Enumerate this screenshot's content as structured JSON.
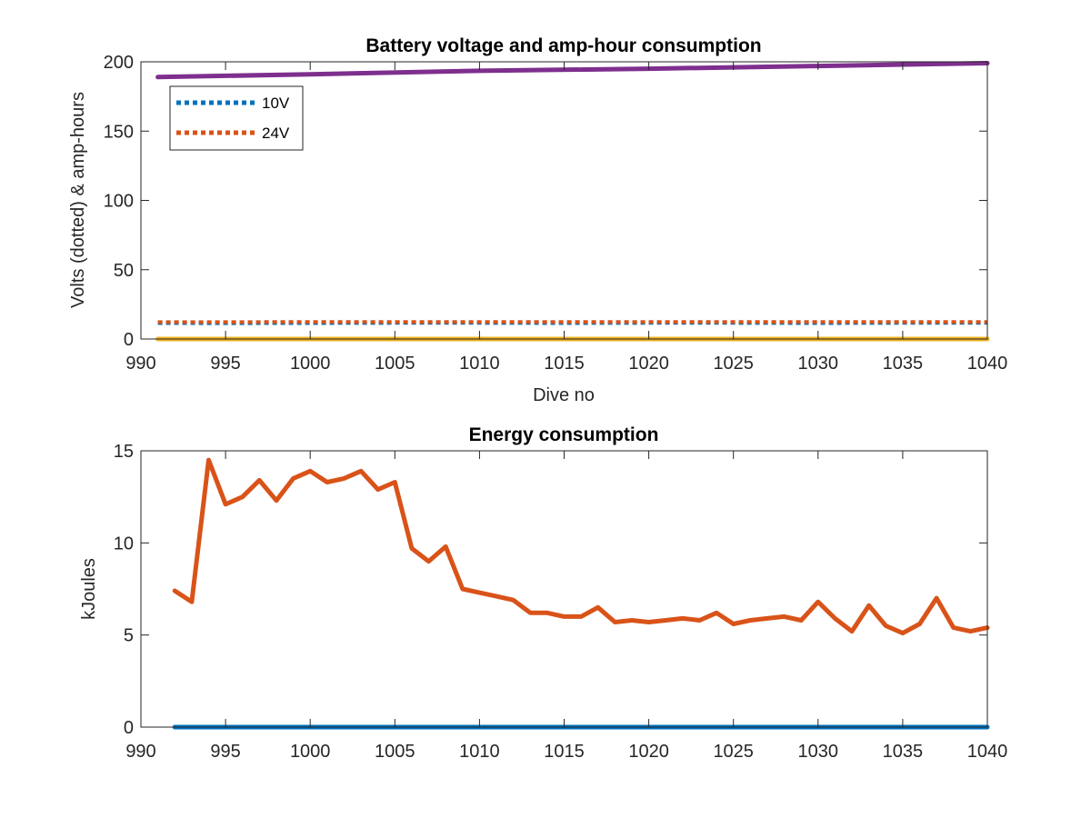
{
  "chart_data": [
    {
      "type": "line",
      "title": "Battery voltage and amp-hour consumption",
      "xlabel": "Dive no",
      "ylabel": "Volts (dotted) & amp-hours",
      "xlim": [
        990,
        1040
      ],
      "ylim": [
        0,
        200
      ],
      "xticks": [
        "990",
        "995",
        "1000",
        "1005",
        "1010",
        "1015",
        "1020",
        "1025",
        "1030",
        "1035",
        "1040"
      ],
      "yticks": [
        "0",
        "50",
        "100",
        "150",
        "200"
      ],
      "legend_position": "top-left",
      "series": [
        {
          "name": "10V",
          "style": "dotted",
          "color": "#0072BD",
          "x": [
            991,
            995,
            1000,
            1005,
            1010,
            1015,
            1020,
            1025,
            1030,
            1035,
            1040
          ],
          "y": [
            11.5,
            11.4,
            11.5,
            11.6,
            11.6,
            11.5,
            11.6,
            11.6,
            11.5,
            11.6,
            11.6
          ]
        },
        {
          "name": "24V",
          "style": "dotted",
          "color": "#D95319",
          "x": [
            991,
            995,
            1000,
            1005,
            1010,
            1015,
            1020,
            1025,
            1030,
            1035,
            1040
          ],
          "y": [
            12.2,
            12.2,
            12.3,
            12.3,
            12.3,
            12.3,
            12.3,
            12.3,
            12.3,
            12.3,
            12.3
          ]
        },
        {
          "style": "solid",
          "color": "#EDB120",
          "x": [
            991,
            1040
          ],
          "y": [
            0,
            0
          ]
        },
        {
          "style": "solid",
          "color": "#7E2F8E",
          "x": [
            991,
            1000,
            1010,
            1020,
            1030,
            1040
          ],
          "y": [
            189,
            191,
            193.5,
            195,
            197,
            199
          ]
        }
      ]
    },
    {
      "type": "line",
      "title": "Energy consumption",
      "xlabel": "",
      "ylabel": "kJoules",
      "xlim": [
        990,
        1040
      ],
      "ylim": [
        0,
        15
      ],
      "xticks": [
        "990",
        "995",
        "1000",
        "1005",
        "1010",
        "1015",
        "1020",
        "1025",
        "1030",
        "1035",
        "1040"
      ],
      "yticks": [
        "0",
        "5",
        "10",
        "15"
      ],
      "series": [
        {
          "style": "solid",
          "color": "#0072BD",
          "x": [
            992,
            1040
          ],
          "y": [
            0,
            0
          ]
        },
        {
          "style": "solid",
          "color": "#D95319",
          "x": [
            992,
            993,
            994,
            995,
            996,
            997,
            998,
            999,
            1000,
            1001,
            1002,
            1003,
            1004,
            1005,
            1006,
            1007,
            1008,
            1009,
            1010,
            1011,
            1012,
            1013,
            1014,
            1015,
            1016,
            1017,
            1018,
            1019,
            1020,
            1021,
            1022,
            1023,
            1024,
            1025,
            1026,
            1027,
            1028,
            1029,
            1030,
            1031,
            1032,
            1033,
            1034,
            1035,
            1036,
            1037,
            1038,
            1039,
            1040
          ],
          "y": [
            7.4,
            6.8,
            14.5,
            12.1,
            12.5,
            13.4,
            12.3,
            13.5,
            13.9,
            13.3,
            13.5,
            13.9,
            12.9,
            13.3,
            9.7,
            9.0,
            9.8,
            7.5,
            7.3,
            7.1,
            6.9,
            6.2,
            6.2,
            6.0,
            6.0,
            6.5,
            5.7,
            5.8,
            5.7,
            5.8,
            5.9,
            5.8,
            6.2,
            5.6,
            5.8,
            5.9,
            6.0,
            5.8,
            6.8,
            5.9,
            5.2,
            6.6,
            5.5,
            5.1,
            5.6,
            7.0,
            5.4,
            5.2,
            5.4
          ]
        }
      ]
    }
  ]
}
